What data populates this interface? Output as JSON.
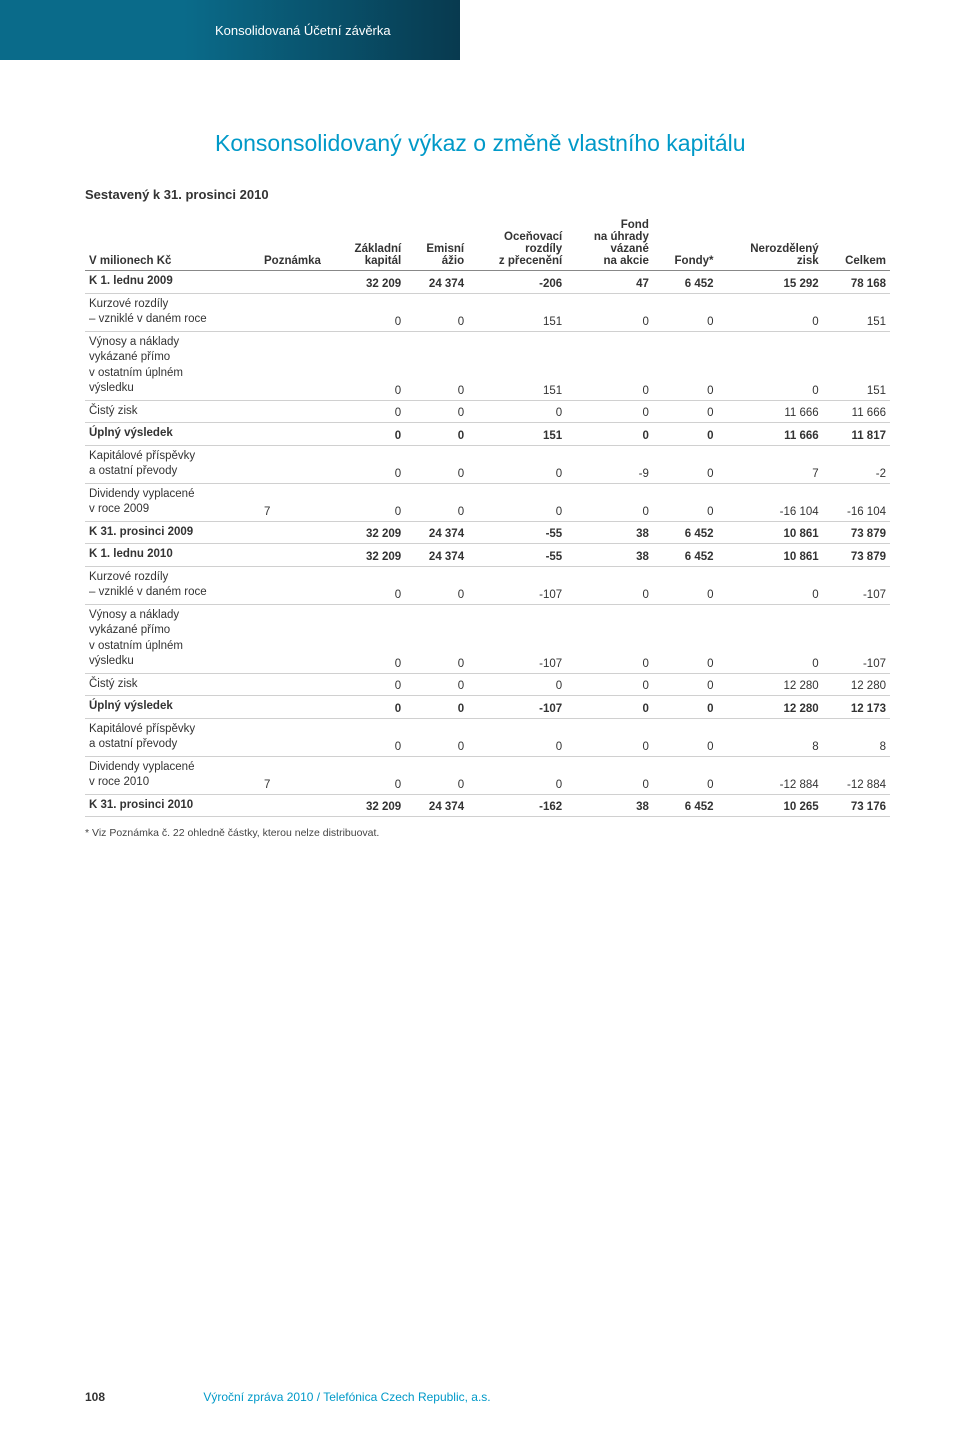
{
  "header": {
    "section_title": "Konsolidovaná Účetní závěrka"
  },
  "title": "Konsonsolidovaný výkaz o změně vlastního kapitálu",
  "subtitle": "Sestavený k 31. prosinci 2010",
  "colors": {
    "ribbon_start": "#0a6b8a",
    "ribbon_end": "#083a4f",
    "title_color": "#0099c8",
    "text_color": "#333333",
    "border_color": "#d0d0d0",
    "header_border": "#888888"
  },
  "table": {
    "type": "table",
    "columns": [
      {
        "key": "label",
        "line1": "",
        "line2": "",
        "line3": "V milionech Kč"
      },
      {
        "key": "pozn",
        "line1": "",
        "line2": "",
        "line3": "Poznámka"
      },
      {
        "key": "c1",
        "line1": "",
        "line2": "Základní",
        "line3": "kapitál"
      },
      {
        "key": "c2",
        "line1": "",
        "line2": "Emisní",
        "line3": "ážio"
      },
      {
        "key": "c3",
        "line1": "Oceňovací",
        "line2": "rozdíly",
        "line3": "z přecenění"
      },
      {
        "key": "c4",
        "line0": "Fond",
        "line1": "na úhrady",
        "line2": "vázané",
        "line3": "na akcie"
      },
      {
        "key": "c5",
        "line1": "",
        "line2": "",
        "line3": "Fondy*"
      },
      {
        "key": "c6",
        "line1": "",
        "line2": "Nerozdělený",
        "line3": "zisk"
      },
      {
        "key": "c7",
        "line1": "",
        "line2": "",
        "line3": "Celkem"
      }
    ],
    "rows": [
      {
        "bold": true,
        "label": "K 1. lednu 2009",
        "pozn": "",
        "c1": "32 209",
        "c2": "24 374",
        "c3": "-206",
        "c4": "47",
        "c5": "6 452",
        "c6": "15 292",
        "c7": "78 168"
      },
      {
        "bold": false,
        "label": "Kurzové rozdíly\n– vzniklé v daném roce",
        "pozn": "",
        "c1": "0",
        "c2": "0",
        "c3": "151",
        "c4": "0",
        "c5": "0",
        "c6": "0",
        "c7": "151"
      },
      {
        "bold": false,
        "label": "Výnosy a náklady\nvykázané přímo\nv ostatním úplném\nvýsledku",
        "pozn": "",
        "c1": "0",
        "c2": "0",
        "c3": "151",
        "c4": "0",
        "c5": "0",
        "c6": "0",
        "c7": "151"
      },
      {
        "bold": false,
        "label": "Čistý zisk",
        "pozn": "",
        "c1": "0",
        "c2": "0",
        "c3": "0",
        "c4": "0",
        "c5": "0",
        "c6": "11 666",
        "c7": "11 666"
      },
      {
        "bold": true,
        "label": "Úplný výsledek",
        "pozn": "",
        "c1": "0",
        "c2": "0",
        "c3": "151",
        "c4": "0",
        "c5": "0",
        "c6": "11 666",
        "c7": "11 817"
      },
      {
        "bold": false,
        "label": "Kapitálové příspěvky\na ostatní převody",
        "pozn": "",
        "c1": "0",
        "c2": "0",
        "c3": "0",
        "c4": "-9",
        "c5": "0",
        "c6": "7",
        "c7": "-2"
      },
      {
        "bold": false,
        "label": "Dividendy vyplacené\nv roce 2009",
        "pozn": "7",
        "c1": "0",
        "c2": "0",
        "c3": "0",
        "c4": "0",
        "c5": "0",
        "c6": "-16 104",
        "c7": "-16 104"
      },
      {
        "bold": true,
        "label": "K 31. prosinci 2009",
        "pozn": "",
        "c1": "32 209",
        "c2": "24 374",
        "c3": "-55",
        "c4": "38",
        "c5": "6 452",
        "c6": "10 861",
        "c7": "73 879"
      },
      {
        "bold": true,
        "label": "K 1. lednu 2010",
        "pozn": "",
        "c1": "32 209",
        "c2": "24 374",
        "c3": "-55",
        "c4": "38",
        "c5": "6 452",
        "c6": "10 861",
        "c7": "73 879"
      },
      {
        "bold": false,
        "label": "Kurzové rozdíly\n– vzniklé v daném roce",
        "pozn": "",
        "c1": "0",
        "c2": "0",
        "c3": "-107",
        "c4": "0",
        "c5": "0",
        "c6": "0",
        "c7": "-107"
      },
      {
        "bold": false,
        "label": "Výnosy a náklady\nvykázané přímo\nv ostatním úplném\nvýsledku",
        "pozn": "",
        "c1": "0",
        "c2": "0",
        "c3": "-107",
        "c4": "0",
        "c5": "0",
        "c6": "0",
        "c7": "-107"
      },
      {
        "bold": false,
        "label": "Čistý zisk",
        "pozn": "",
        "c1": "0",
        "c2": "0",
        "c3": "0",
        "c4": "0",
        "c5": "0",
        "c6": "12 280",
        "c7": "12 280"
      },
      {
        "bold": true,
        "label": "Úplný výsledek",
        "pozn": "",
        "c1": "0",
        "c2": "0",
        "c3": "-107",
        "c4": "0",
        "c5": "0",
        "c6": "12 280",
        "c7": "12 173"
      },
      {
        "bold": false,
        "label": "Kapitálové příspěvky\na ostatní převody",
        "pozn": "",
        "c1": "0",
        "c2": "0",
        "c3": "0",
        "c4": "0",
        "c5": "0",
        "c6": "8",
        "c7": "8"
      },
      {
        "bold": false,
        "label": "Dividendy vyplacené\nv roce 2010",
        "pozn": "7",
        "c1": "0",
        "c2": "0",
        "c3": "0",
        "c4": "0",
        "c5": "0",
        "c6": "-12 884",
        "c7": "-12 884"
      },
      {
        "bold": true,
        "label": "K 31. prosinci 2010",
        "pozn": "",
        "c1": "32 209",
        "c2": "24 374",
        "c3": "-162",
        "c4": "38",
        "c5": "6 452",
        "c6": "10 265",
        "c7": "73 176"
      }
    ]
  },
  "footnote": "*  Viz Poznámka č. 22 ohledně částky, kterou nelze distribuovat.",
  "footer": {
    "page_number": "108",
    "doc_title": "Výroční zpráva 2010  / Telefónica Czech Republic, a.s."
  }
}
